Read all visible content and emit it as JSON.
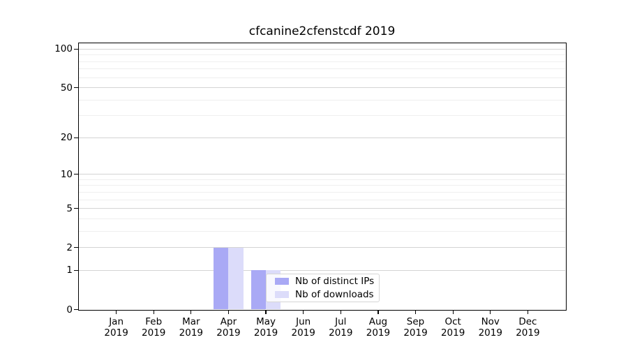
{
  "title": "cfcanine2cfenstcdf 2019",
  "chart_data": {
    "type": "bar",
    "title": "cfcanine2cfenstcdf 2019",
    "categories": [
      "Jan 2019",
      "Feb 2019",
      "Mar 2019",
      "Apr 2019",
      "May 2019",
      "Jun 2019",
      "Jul 2019",
      "Aug 2019",
      "Sep 2019",
      "Oct 2019",
      "Nov 2019",
      "Dec 2019"
    ],
    "series": [
      {
        "name": "Nb of distinct IPs",
        "color": "#a9a9f5",
        "values": [
          0,
          0,
          0,
          2,
          1,
          0,
          0,
          0,
          0,
          0,
          0,
          0
        ]
      },
      {
        "name": "Nb of downloads",
        "color": "#dcdcfa",
        "values": [
          0,
          0,
          0,
          2,
          1,
          0,
          0,
          0,
          0,
          0,
          0,
          0
        ]
      }
    ],
    "yscale": "log1p",
    "ylim": [
      0,
      111
    ],
    "major_yticks": [
      0,
      1,
      2,
      5,
      10,
      20,
      50,
      100
    ],
    "minor_yticks": [
      3,
      4,
      6,
      7,
      8,
      9,
      30,
      40,
      60,
      70,
      80,
      90
    ],
    "grid": "horizontal",
    "colors": {
      "major_grid": "#d4d4d4",
      "minor_grid": "#efefef",
      "axis": "#000000"
    },
    "legend_position": "lower-center"
  },
  "legend": {
    "items": [
      {
        "label": "Nb of distinct IPs"
      },
      {
        "label": "Nb of downloads"
      }
    ]
  }
}
